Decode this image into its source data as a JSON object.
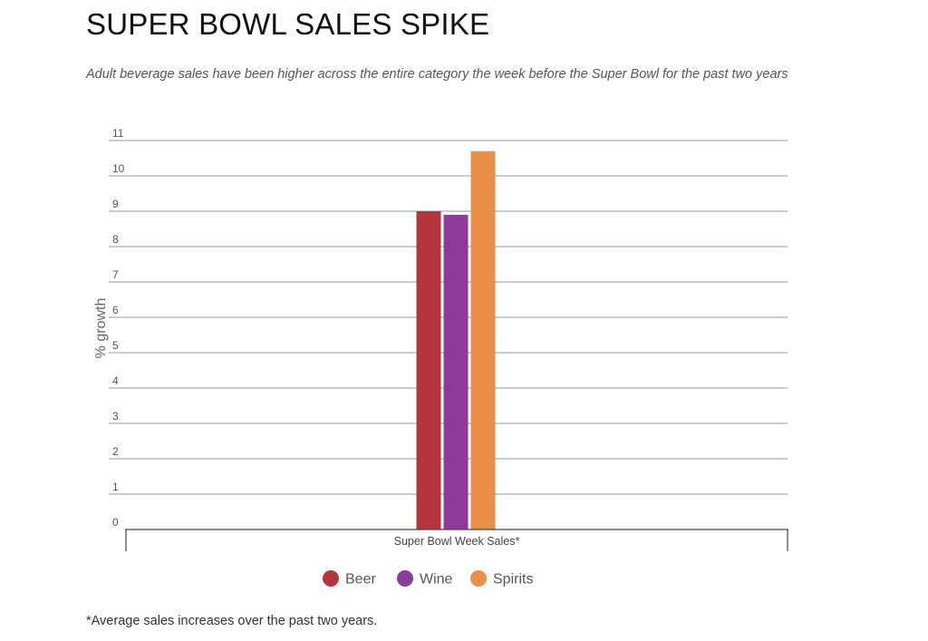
{
  "title": "SUPER BOWL SALES SPIKE",
  "subtitle": "Adult beverage sales have been higher across the entire category the week before the Super Bowl for the past two years",
  "footnote": "*Average sales increases over the past two years.",
  "chart_data": {
    "type": "bar",
    "categories": [
      "Super Bowl Week Sales*"
    ],
    "series": [
      {
        "name": "Beer",
        "values": [
          9.0
        ],
        "color": "#b5353f"
      },
      {
        "name": "Wine",
        "values": [
          8.9
        ],
        "color": "#8e3a9d"
      },
      {
        "name": "Spirits",
        "values": [
          10.7
        ],
        "color": "#e8904a"
      }
    ],
    "xlabel": "",
    "ylabel": "% growth",
    "ylim": [
      0,
      11
    ],
    "yticks": [
      0,
      1,
      2,
      3,
      4,
      5,
      6,
      7,
      8,
      9,
      10,
      11
    ],
    "grid": true,
    "legend_position": "bottom-center"
  }
}
